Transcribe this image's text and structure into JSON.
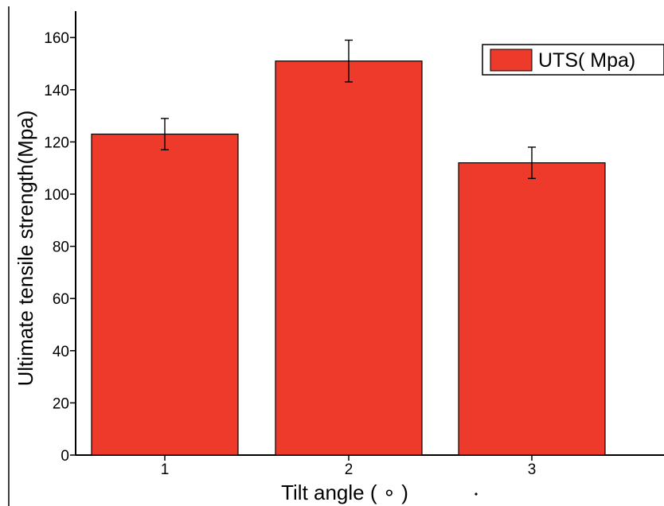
{
  "chart_data": {
    "type": "bar",
    "categories": [
      "1",
      "2",
      "3"
    ],
    "series": [
      {
        "name": "UTS( Mpa)",
        "values": [
          123,
          151,
          112
        ],
        "errors": [
          6,
          8,
          6
        ],
        "color": "#ee3a2a"
      }
    ],
    "xlabel": "Tilt angle ( ∘ )",
    "ylabel": "Ultimate tensile strength(Mpa)",
    "ylim": [
      0,
      170
    ],
    "yticks": [
      0,
      20,
      40,
      60,
      80,
      100,
      120,
      140,
      160
    ],
    "grid": false,
    "legend_position": "top-right"
  }
}
